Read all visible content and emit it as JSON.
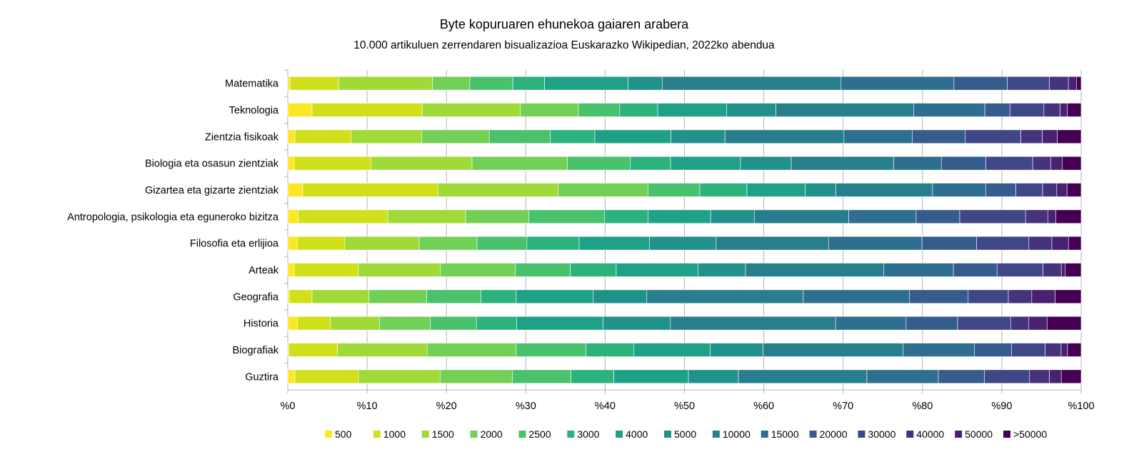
{
  "chart_data": {
    "type": "bar",
    "orientation": "horizontal",
    "stacked": "percent",
    "title": "Byte kopuruaren ehunekoa gaiaren arabera",
    "subtitle": "10.000 artikuluen zerrendaren bisualizazioa Euskarazko Wikipedian, 2022ko abendua",
    "categories": [
      "Matematika",
      "Teknologia",
      "Zientzia fisikoak",
      "Biologia eta osasun zientziak",
      "Gizartea eta gizarte zientziak",
      "Antropologia, psikologia eta eguneroko bizitza",
      "Filosofia eta erlijioa",
      "Arteak",
      "Geografia",
      "Historia",
      "Biografiak",
      "Guztira"
    ],
    "x_ticks": [
      "%0",
      "%10",
      "%20",
      "%30",
      "%40",
      "%50",
      "%60",
      "%70",
      "%80",
      "%90",
      "%100"
    ],
    "xlim": [
      0,
      100
    ],
    "grid": "vertical",
    "legend_position": "bottom",
    "series": [
      {
        "name": "500",
        "color": "#fde725",
        "values": [
          0.3,
          3.0,
          0.9,
          0.8,
          1.9,
          1.3,
          1.2,
          0.8,
          0.2,
          1.3,
          0.1,
          0.9
        ]
      },
      {
        "name": "1000",
        "color": "#d0e11c",
        "values": [
          6.1,
          13.6,
          7.1,
          9.7,
          17.2,
          11.3,
          6.0,
          8.1,
          2.7,
          4.3,
          6.1,
          8.0
        ]
      },
      {
        "name": "1500",
        "color": "#a0da39",
        "values": [
          11.8,
          12.1,
          8.9,
          12.7,
          15.3,
          9.8,
          9.4,
          10.3,
          6.8,
          6.5,
          11.2,
          10.3
        ]
      },
      {
        "name": "2000",
        "color": "#73d056",
        "values": [
          4.7,
          7.2,
          8.5,
          12.0,
          11.4,
          8.0,
          7.3,
          9.5,
          6.9,
          6.7,
          11.1,
          9.1
        ]
      },
      {
        "name": "2500",
        "color": "#4ac16d",
        "values": [
          5.4,
          5.1,
          7.7,
          7.9,
          6.6,
          9.5,
          6.3,
          6.9,
          6.5,
          6.1,
          8.7,
          7.4
        ]
      },
      {
        "name": "3000",
        "color": "#2db27d",
        "values": [
          4.0,
          4.7,
          5.6,
          5.1,
          6.0,
          5.5,
          6.6,
          5.8,
          4.2,
          5.3,
          6.0,
          5.4
        ]
      },
      {
        "name": "4000",
        "color": "#1fa187",
        "values": [
          10.5,
          8.5,
          9.6,
          8.8,
          7.4,
          7.9,
          8.9,
          10.3,
          9.2,
          11.4,
          9.5,
          9.4
        ]
      },
      {
        "name": "5000",
        "color": "#21918c",
        "values": [
          4.3,
          6.1,
          6.8,
          6.4,
          3.9,
          5.5,
          8.4,
          6.0,
          6.4,
          8.9,
          6.6,
          6.3
        ]
      },
      {
        "name": "10000",
        "color": "#277f8e",
        "values": [
          22.5,
          17.0,
          15.0,
          12.9,
          12.3,
          11.9,
          14.2,
          17.4,
          18.7,
          21.8,
          17.5,
          16.2
        ]
      },
      {
        "name": "15000",
        "color": "#2e6e8e",
        "values": [
          14.2,
          8.8,
          8.6,
          6.0,
          6.8,
          8.5,
          11.8,
          8.8,
          12.7,
          9.3,
          8.9,
          9.0
        ]
      },
      {
        "name": "20000",
        "color": "#365c8d",
        "values": [
          6.7,
          3.1,
          6.7,
          5.6,
          3.8,
          5.5,
          6.9,
          5.5,
          7.0,
          6.8,
          4.6,
          5.8
        ]
      },
      {
        "name": "30000",
        "color": "#3f4788",
        "values": [
          5.3,
          4.2,
          7.0,
          5.9,
          3.4,
          8.3,
          6.6,
          5.8,
          4.8,
          7.0,
          4.2,
          5.7
        ]
      },
      {
        "name": "40000",
        "color": "#46337e",
        "values": [
          2.4,
          2.0,
          2.7,
          2.3,
          1.8,
          2.8,
          2.9,
          2.3,
          2.8,
          2.4,
          2.0,
          2.5
        ]
      },
      {
        "name": "50000",
        "color": "#482173",
        "values": [
          1.0,
          0.9,
          1.9,
          1.4,
          1.3,
          1.0,
          2.1,
          0.5,
          2.8,
          2.4,
          0.8,
          1.5
        ]
      },
      {
        "name": ">50000",
        "color": "#440154",
        "values": [
          0.6,
          1.7,
          3.0,
          2.4,
          1.8,
          3.2,
          1.6,
          2.0,
          3.1,
          4.5,
          1.7,
          2.5
        ]
      }
    ]
  }
}
